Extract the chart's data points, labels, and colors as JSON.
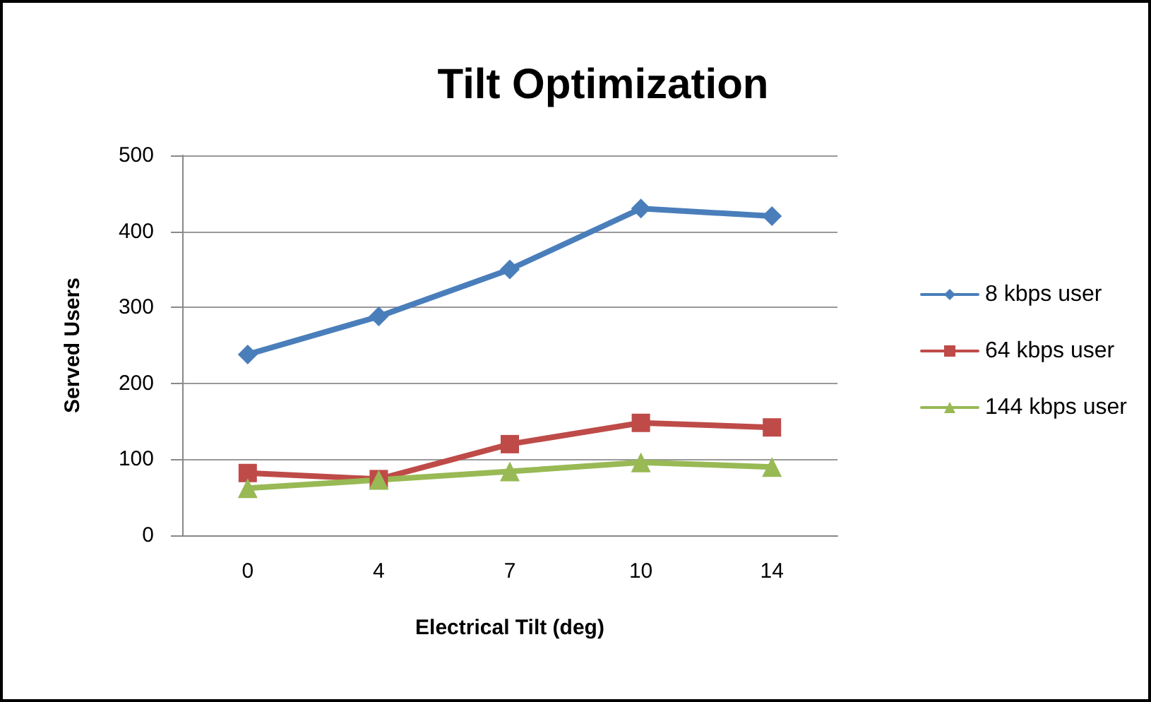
{
  "chart_data": {
    "type": "line",
    "title": "Tilt Optimization",
    "xlabel": "Electrical Tilt (deg)",
    "ylabel": "Served Users",
    "categories": [
      "0",
      "4",
      "7",
      "10",
      "14"
    ],
    "series": [
      {
        "name": "8 kbps user",
        "color": "#4a7ebb",
        "marker": "diamond",
        "values": [
          238,
          288,
          350,
          430,
          420
        ]
      },
      {
        "name": "64 kbps user",
        "color": "#be4b48",
        "marker": "square",
        "values": [
          82,
          74,
          120,
          148,
          142
        ]
      },
      {
        "name": "144 kbps user",
        "color": "#98b954",
        "marker": "triangle",
        "values": [
          62,
          73,
          84,
          96,
          90
        ]
      }
    ],
    "ylim": [
      0,
      500
    ],
    "yticks": [
      0,
      100,
      200,
      300,
      400,
      500
    ],
    "grid": "y",
    "legend": "right"
  }
}
